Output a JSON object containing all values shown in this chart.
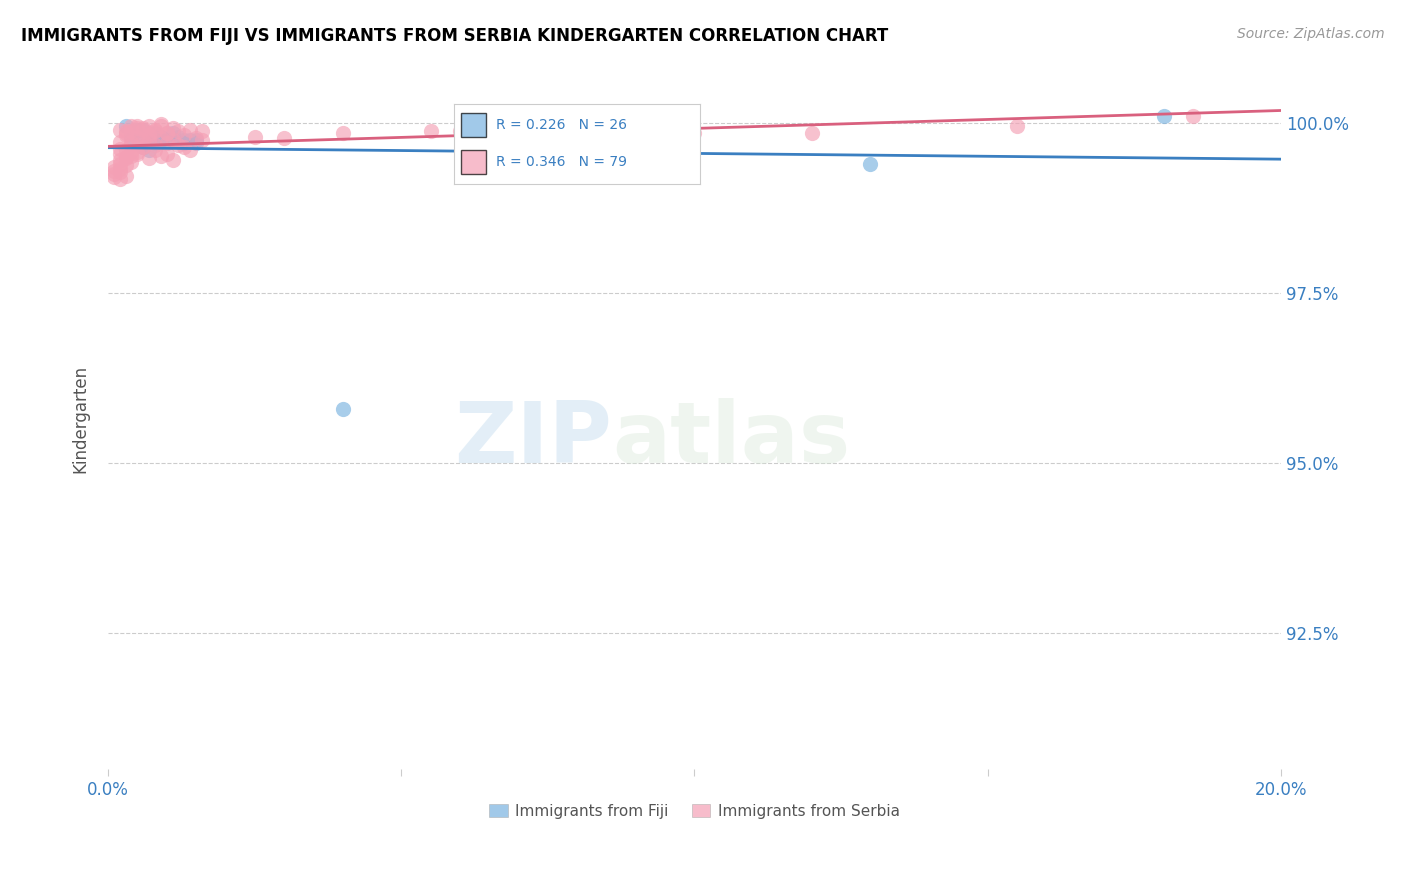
{
  "title": "IMMIGRANTS FROM FIJI VS IMMIGRANTS FROM SERBIA KINDERGARTEN CORRELATION CHART",
  "source": "Source: ZipAtlas.com",
  "ylabel_label": "Kindergarten",
  "legend_label_fiji": "Immigrants from Fiji",
  "legend_label_serbia": "Immigrants from Serbia",
  "fiji_R": "R = 0.226",
  "fiji_N": "N = 26",
  "serbia_R": "R = 0.346",
  "serbia_N": "N = 79",
  "x_min": 0.0,
  "x_max": 0.2,
  "y_min": 0.905,
  "y_max": 1.008,
  "y_ticks": [
    0.925,
    0.95,
    0.975,
    1.0
  ],
  "y_tick_labels": [
    "92.5%",
    "95.0%",
    "97.5%",
    "100.0%"
  ],
  "fiji_color": "#7ab3e0",
  "serbia_color": "#f4a0b5",
  "fiji_line_color": "#3a7fc1",
  "serbia_line_color": "#d9607e",
  "watermark_zip": "ZIP",
  "watermark_atlas": "atlas",
  "fiji_scatter_x": [
    0.005,
    0.008,
    0.012,
    0.015,
    0.003,
    0.006,
    0.009,
    0.011,
    0.013,
    0.007,
    0.004,
    0.01,
    0.014,
    0.008,
    0.006,
    0.009,
    0.011,
    0.007,
    0.013,
    0.015,
    0.006,
    0.085,
    0.09,
    0.04,
    0.18,
    0.13
  ],
  "fiji_scatter_y": [
    0.999,
    0.9985,
    0.998,
    0.9975,
    0.9995,
    0.999,
    0.998,
    0.9985,
    0.9975,
    0.9975,
    0.998,
    0.9975,
    0.9975,
    0.997,
    0.997,
    0.9975,
    0.9975,
    0.996,
    0.997,
    0.997,
    0.9965,
    0.9975,
    0.9975,
    0.958,
    1.001,
    0.994
  ],
  "serbia_scatter_x": [
    0.002,
    0.004,
    0.005,
    0.006,
    0.007,
    0.008,
    0.009,
    0.01,
    0.011,
    0.012,
    0.013,
    0.014,
    0.015,
    0.016,
    0.003,
    0.005,
    0.007,
    0.009,
    0.011,
    0.004,
    0.006,
    0.008,
    0.01,
    0.013,
    0.016,
    0.002,
    0.004,
    0.006,
    0.008,
    0.01,
    0.012,
    0.014,
    0.003,
    0.005,
    0.007,
    0.009,
    0.011,
    0.003,
    0.005,
    0.007,
    0.009,
    0.004,
    0.006,
    0.008,
    0.01,
    0.003,
    0.005,
    0.007,
    0.002,
    0.004,
    0.006,
    0.003,
    0.005,
    0.002,
    0.004,
    0.003,
    0.002,
    0.004,
    0.002,
    0.003,
    0.001,
    0.002,
    0.001,
    0.002,
    0.001,
    0.003,
    0.001,
    0.002,
    0.04,
    0.06,
    0.08,
    0.1,
    0.155,
    0.03,
    0.025,
    0.055,
    0.07,
    0.12,
    0.185
  ],
  "serbia_scatter_y": [
    0.999,
    0.9988,
    0.9995,
    0.9992,
    0.9985,
    0.999,
    0.9995,
    0.9985,
    0.9992,
    0.9988,
    0.9983,
    0.999,
    0.9978,
    0.9988,
    0.9985,
    0.998,
    0.9982,
    0.9978,
    0.9975,
    0.9972,
    0.9975,
    0.9968,
    0.997,
    0.9965,
    0.9975,
    0.9962,
    0.9958,
    0.9965,
    0.996,
    0.9955,
    0.9968,
    0.996,
    0.995,
    0.9955,
    0.9948,
    0.9952,
    0.9945,
    0.9988,
    0.9992,
    0.9995,
    0.9998,
    0.9996,
    0.999,
    0.9988,
    0.9985,
    0.9982,
    0.9978,
    0.9975,
    0.9972,
    0.9968,
    0.9965,
    0.996,
    0.9958,
    0.9955,
    0.9952,
    0.9948,
    0.9945,
    0.9942,
    0.994,
    0.9938,
    0.9935,
    0.9932,
    0.993,
    0.9928,
    0.9925,
    0.9922,
    0.992,
    0.9918,
    0.9985,
    0.9988,
    0.9992,
    0.9985,
    0.9995,
    0.9978,
    0.998,
    0.9988,
    0.999,
    0.9985,
    1.001
  ]
}
